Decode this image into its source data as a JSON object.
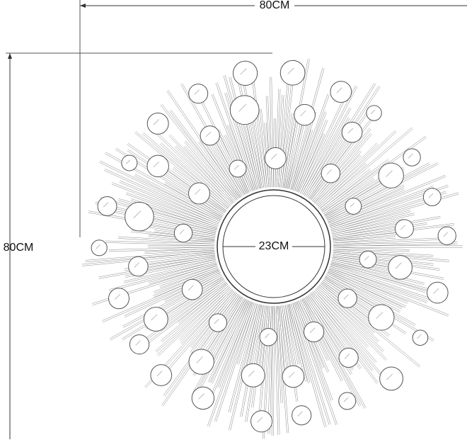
{
  "dimensions": {
    "width_label": "80CM",
    "height_label": "80CM",
    "center_label": "23CM"
  }
}
